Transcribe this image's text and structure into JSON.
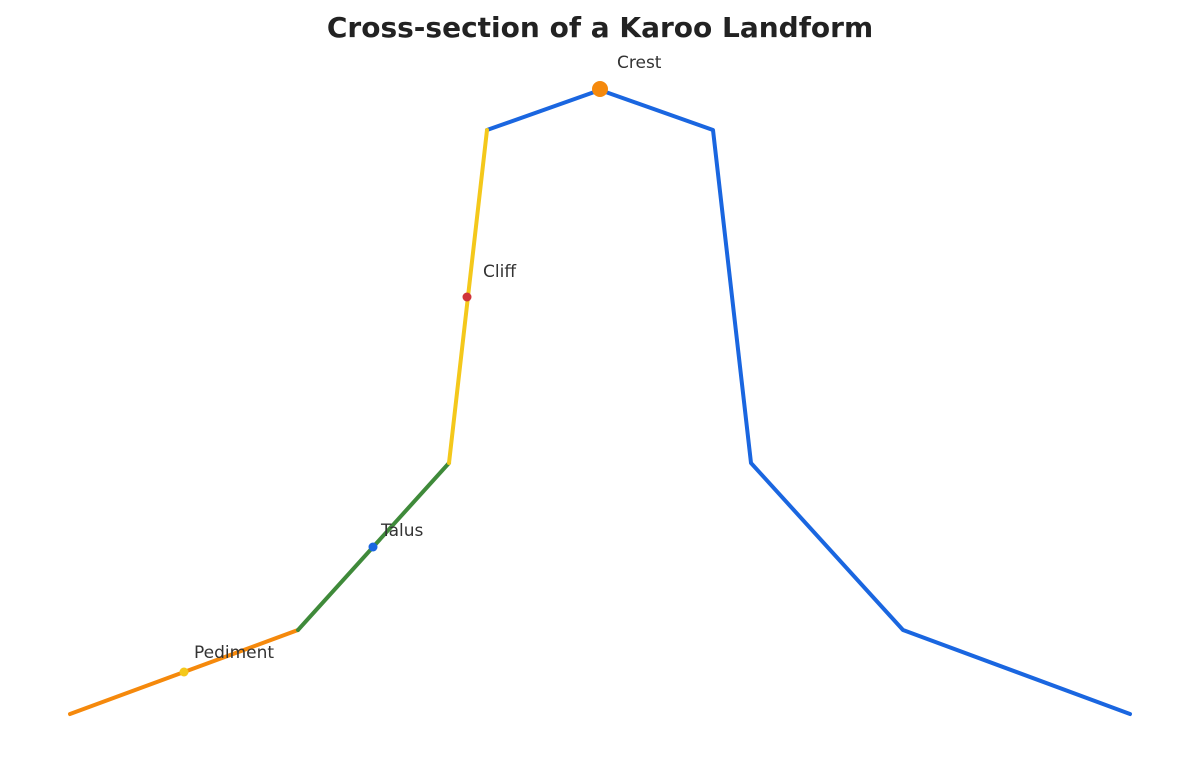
{
  "title": "Cross-section of a Karoo Landform",
  "labels": [
    "Crest",
    "Cliff",
    "Talus",
    "Pediment"
  ]
}
